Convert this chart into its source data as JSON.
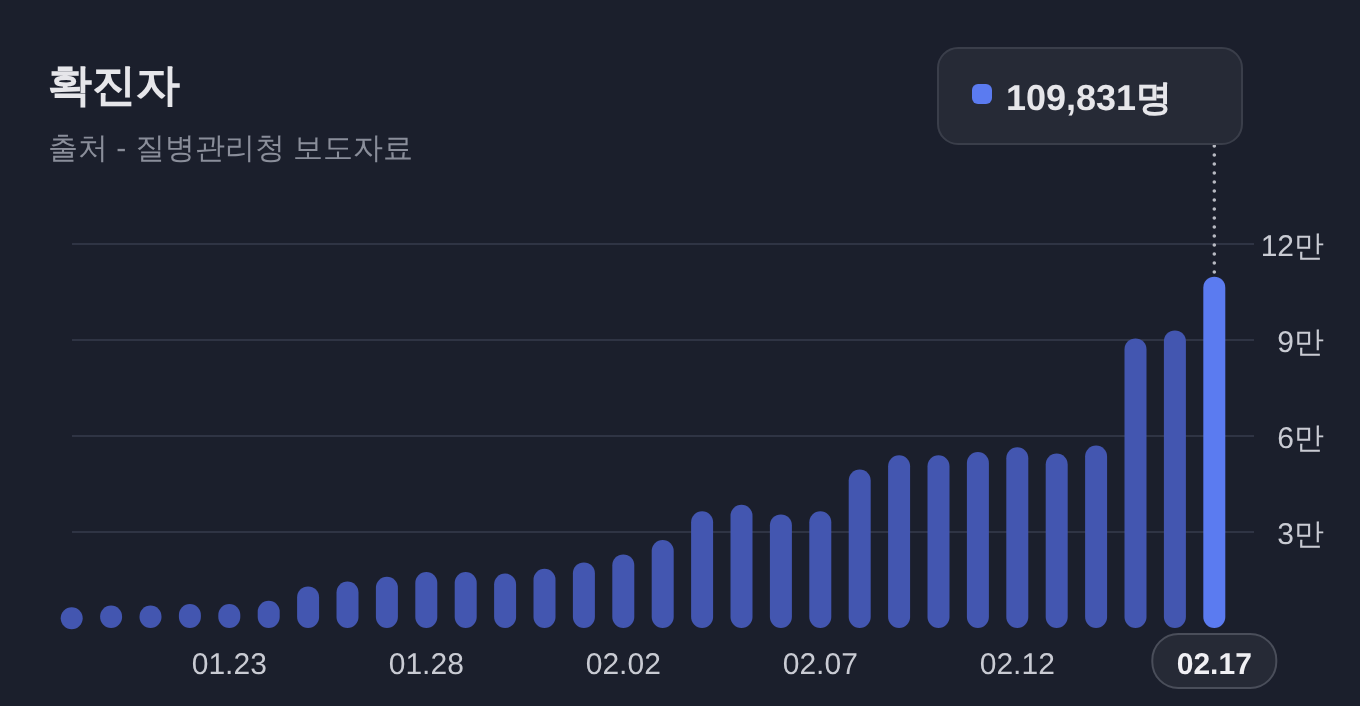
{
  "chart_data": {
    "type": "bar",
    "title": "확진자",
    "subtitle": "출처 - 질병관리청 보도자료",
    "categories": [
      null,
      null,
      null,
      null,
      "01.23",
      null,
      null,
      null,
      null,
      "01.28",
      null,
      null,
      null,
      null,
      "02.02",
      null,
      null,
      null,
      null,
      "02.07",
      null,
      null,
      null,
      null,
      "02.12",
      null,
      null,
      null,
      null,
      "02.17"
    ],
    "values": [
      0.65,
      0.7,
      0.7,
      0.75,
      0.75,
      0.85,
      1.3,
      1.45,
      1.6,
      1.75,
      1.75,
      1.7,
      1.85,
      2.05,
      2.3,
      2.75,
      3.65,
      3.85,
      3.55,
      3.65,
      4.95,
      5.4,
      5.4,
      5.5,
      5.65,
      5.45,
      5.7,
      9.05,
      9.3,
      10.98
    ],
    "colors": [
      "#4356b0",
      "#4356b0",
      "#4356b0",
      "#4356b0",
      "#4356b0",
      "#4356b0",
      "#4356b0",
      "#4356b0",
      "#4356b0",
      "#4356b0",
      "#4356b0",
      "#4356b0",
      "#4356b0",
      "#4356b0",
      "#4356b0",
      "#4356b0",
      "#4356b0",
      "#4356b0",
      "#4356b0",
      "#4356b0",
      "#4356b0",
      "#4356b0",
      "#4356b0",
      "#4356b0",
      "#4356b0",
      "#4356b0",
      "#4356b0",
      "#4356b0",
      "#4356b0",
      "#5b7bf0"
    ],
    "ylim": [
      0,
      12
    ],
    "yticks": [
      {
        "value": 3,
        "label": "3만"
      },
      {
        "value": 6,
        "label": "6만"
      },
      {
        "value": 9,
        "label": "9만"
      },
      {
        "value": 12,
        "label": "12만"
      }
    ],
    "grid": "y",
    "annotations": [
      "109,831명"
    ]
  }
}
